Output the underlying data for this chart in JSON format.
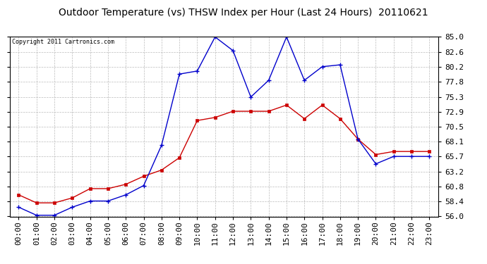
{
  "title": "Outdoor Temperature (vs) THSW Index per Hour (Last 24 Hours)  20110621",
  "copyright": "Copyright 2011 Cartronics.com",
  "x_labels": [
    "00:00",
    "01:00",
    "02:00",
    "03:00",
    "04:00",
    "05:00",
    "06:00",
    "07:00",
    "08:00",
    "09:00",
    "10:00",
    "11:00",
    "12:00",
    "13:00",
    "14:00",
    "15:00",
    "16:00",
    "17:00",
    "18:00",
    "19:00",
    "20:00",
    "21:00",
    "22:00",
    "23:00"
  ],
  "temp_outdoor": [
    59.5,
    58.2,
    58.2,
    59.0,
    60.5,
    60.5,
    61.2,
    62.5,
    63.5,
    65.5,
    71.5,
    72.0,
    73.0,
    73.0,
    73.0,
    74.0,
    71.8,
    74.0,
    71.8,
    68.5,
    66.0,
    66.5,
    66.5,
    66.5
  ],
  "thsw_index": [
    57.5,
    56.2,
    56.2,
    57.5,
    58.5,
    58.5,
    59.5,
    61.0,
    67.5,
    79.0,
    79.5,
    85.0,
    82.8,
    75.3,
    78.0,
    85.0,
    78.0,
    80.2,
    80.5,
    68.5,
    64.5,
    65.7,
    65.7,
    65.7
  ],
  "y_ticks": [
    56.0,
    58.4,
    60.8,
    63.2,
    65.7,
    68.1,
    70.5,
    72.9,
    75.3,
    77.8,
    80.2,
    82.6,
    85.0
  ],
  "y_min": 56.0,
  "y_max": 85.0,
  "color_temp": "#cc0000",
  "color_thsw": "#0000cc",
  "background_color": "#ffffff",
  "grid_color": "#aaaaaa",
  "title_fontsize": 10,
  "copyright_fontsize": 6,
  "tick_fontsize": 8
}
